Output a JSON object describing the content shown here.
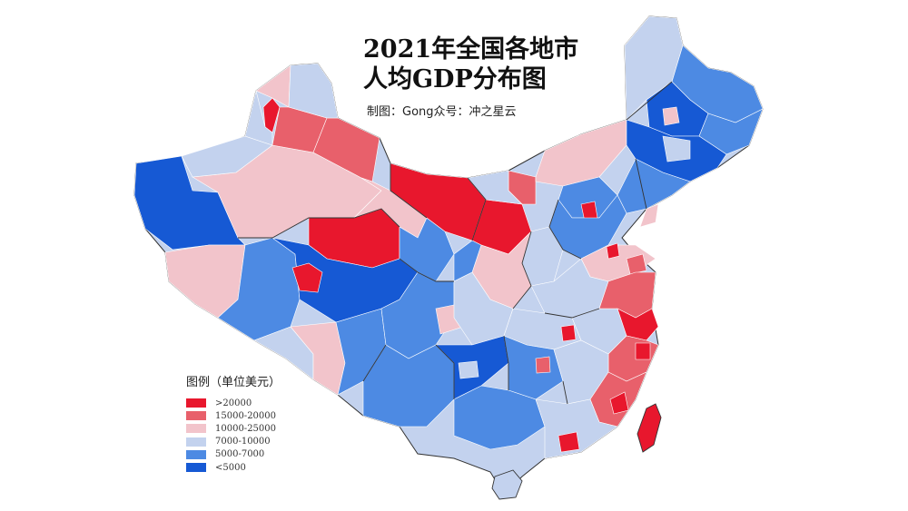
{
  "title": {
    "line1": "2021年全国各地市",
    "line2": "人均GDP分布图",
    "subtitle": "制图：Gong众号：冲之星云"
  },
  "legend": {
    "title": "图例（单位美元）",
    "items": [
      {
        "label": ">20000",
        "color": "#e8172d"
      },
      {
        "label": "15000-20000",
        "color": "#e8606b"
      },
      {
        "label": "10000-25000",
        "color": "#f2c4cb"
      },
      {
        "label": "7000-10000",
        "color": "#c3d2ee"
      },
      {
        "label": "5000-7000",
        "color": "#4d8ae3"
      },
      {
        "label": "<5000",
        "color": "#1659d4"
      }
    ]
  }
}
